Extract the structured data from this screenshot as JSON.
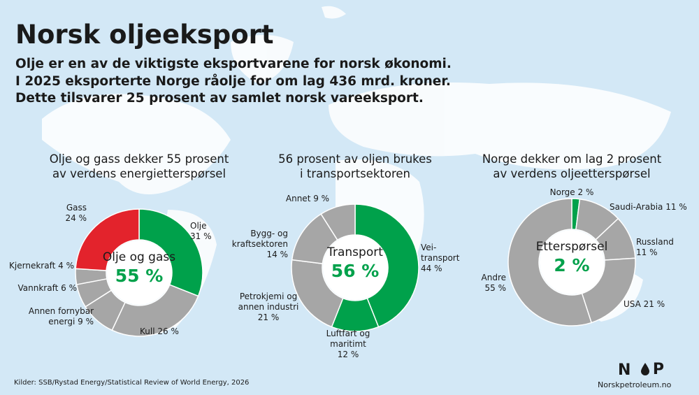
{
  "title": "Norsk oljeeksport",
  "intro": [
    "Olje er en av de viktigste eksportvarene for norsk økonomi.",
    "I 2025 eksporterte Norge råolje for om lag 436 mrd. kroner.",
    "Dette tilsvarer 25 prosent av samlet norsk vareeksport."
  ],
  "source": "Kilder: SSB/Rystad Energy/Statistical Review of World Energy, 2026",
  "logo": {
    "mark_left": "N",
    "mark_right": "P",
    "site": "Norskpetroleum.no"
  },
  "chart_data": [
    {
      "type": "pie",
      "title": [
        "Olje og gass dekker 55 prosent",
        "av verdens energietterspørsel"
      ],
      "center_label": "Olje og gass",
      "center_value": "55 %",
      "categories": [
        "Olje",
        "Kull",
        "Annen fornybar energi",
        "Vannkraft",
        "Kjernekraft",
        "Gass"
      ],
      "values": [
        31,
        26,
        9,
        6,
        4,
        24
      ],
      "value_labels": [
        "31 %",
        "26 %",
        "9 %",
        "6 %",
        "4 %",
        "24 %"
      ],
      "colors": [
        "#00a14b",
        "#a6a6a6",
        "#a6a6a6",
        "#a6a6a6",
        "#a6a6a6",
        "#e3232c"
      ]
    },
    {
      "type": "pie",
      "title": [
        "56 prosent av oljen brukes",
        "i transportsektoren"
      ],
      "center_label": "Transport",
      "center_value": "56 %",
      "categories": [
        "Vei-transport",
        "Luftfart og maritimt",
        "Petrokjemi og annen industri",
        "Bygg- og kraftsektoren",
        "Annet"
      ],
      "values": [
        44,
        12,
        21,
        14,
        9
      ],
      "value_labels": [
        "44 %",
        "12 %",
        "21 %",
        "14 %",
        "9 %"
      ],
      "colors": [
        "#00a14b",
        "#00a14b",
        "#a6a6a6",
        "#a6a6a6",
        "#a6a6a6"
      ]
    },
    {
      "type": "pie",
      "title": [
        "Norge dekker om lag 2 prosent",
        "av verdens oljeetterspørsel"
      ],
      "center_label": "Etterspørsel",
      "center_value": "2 %",
      "categories": [
        "Norge",
        "Saudi-Arabia",
        "Russland",
        "USA",
        "Andre"
      ],
      "values": [
        2,
        11,
        11,
        21,
        55
      ],
      "value_labels": [
        "2 %",
        "11 %",
        "11 %",
        "21 %",
        "55 %"
      ],
      "colors": [
        "#00a14b",
        "#a6a6a6",
        "#a6a6a6",
        "#a6a6a6",
        "#a6a6a6"
      ]
    }
  ]
}
